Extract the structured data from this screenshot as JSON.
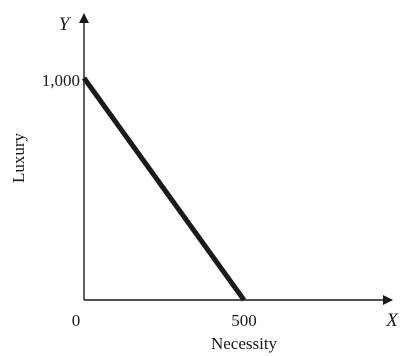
{
  "chart_data": {
    "type": "line",
    "title": "",
    "xlabel": "Necessity",
    "ylabel": "Luxury",
    "x_axis_letter": "X",
    "y_axis_letter": "Y",
    "origin_label": "0",
    "xlim": [
      0,
      500
    ],
    "ylim": [
      0,
      1000
    ],
    "x_tick_labels": [
      "500"
    ],
    "y_tick_labels": [
      "1,000"
    ],
    "grid": false,
    "series": [
      {
        "x": [
          0,
          500
        ],
        "y": [
          1000,
          0
        ]
      }
    ],
    "colors": {
      "axis": "#1a1a1a",
      "line": "#1a1a1a"
    }
  }
}
